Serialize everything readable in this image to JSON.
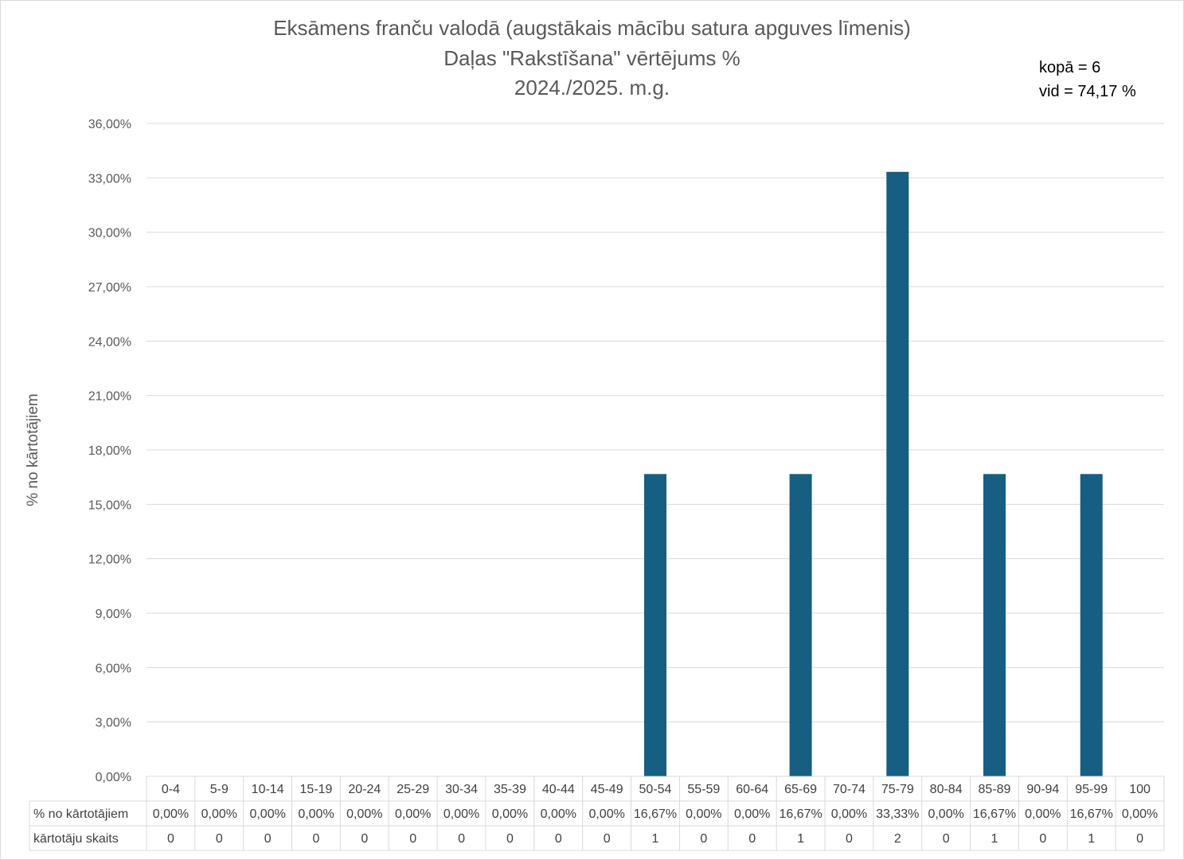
{
  "chart_data": {
    "type": "bar",
    "title": "Eksāmens franču valodā (augstākais mācību satura apguves līmenis)",
    "subtitle": "Daļas \"Rakstīšana\" vērtējums %",
    "period": "2024./2025. m.g.",
    "annotations": [
      "kopā = 6",
      "vid = 74,17 %"
    ],
    "ylabel": "% no kārtotājiem",
    "ylim": [
      0,
      36
    ],
    "yticks": [
      0,
      3,
      6,
      9,
      12,
      15,
      18,
      21,
      24,
      27,
      30,
      33,
      36
    ],
    "ytick_labels": [
      "0,00%",
      "3,00%",
      "6,00%",
      "9,00%",
      "12,00%",
      "15,00%",
      "18,00%",
      "21,00%",
      "24,00%",
      "27,00%",
      "30,00%",
      "33,00%",
      "36,00%"
    ],
    "grid": true,
    "bar_color": "#165E82",
    "categories": [
      "0-4",
      "5-9",
      "10-14",
      "15-19",
      "20-24",
      "25-29",
      "30-34",
      "35-39",
      "40-44",
      "45-49",
      "50-54",
      "55-59",
      "60-64",
      "65-69",
      "70-74",
      "75-79",
      "80-84",
      "85-89",
      "90-94",
      "95-99",
      "100"
    ],
    "values": [
      0,
      0,
      0,
      0,
      0,
      0,
      0,
      0,
      0,
      0,
      16.67,
      0,
      0,
      16.67,
      0,
      33.33,
      0,
      16.67,
      0,
      16.67,
      0
    ],
    "table": {
      "rows": [
        {
          "label": "% no kārtotājiem",
          "cells": [
            "0,00%",
            "0,00%",
            "0,00%",
            "0,00%",
            "0,00%",
            "0,00%",
            "0,00%",
            "0,00%",
            "0,00%",
            "0,00%",
            "16,67%",
            "0,00%",
            "0,00%",
            "16,67%",
            "0,00%",
            "33,33%",
            "0,00%",
            "16,67%",
            "0,00%",
            "16,67%",
            "0,00%"
          ]
        },
        {
          "label": "kārtotāju skaits",
          "cells": [
            "0",
            "0",
            "0",
            "0",
            "0",
            "0",
            "0",
            "0",
            "0",
            "0",
            "1",
            "0",
            "0",
            "1",
            "0",
            "2",
            "0",
            "1",
            "0",
            "1",
            "0"
          ]
        }
      ]
    }
  }
}
